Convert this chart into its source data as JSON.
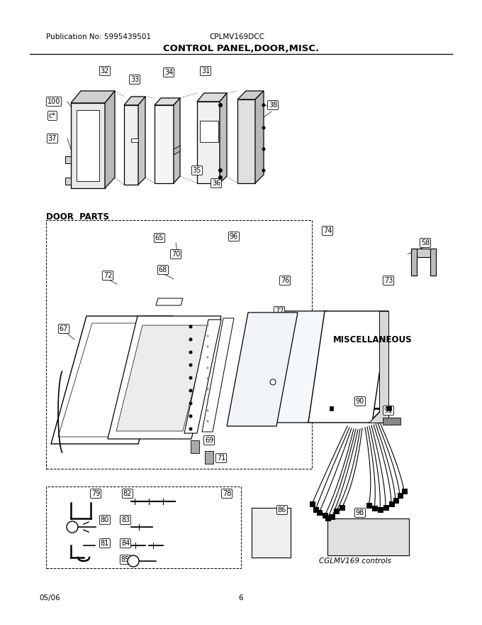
{
  "title": "CONTROL PANEL,DOOR,MISC.",
  "pub_no": "Publication No: 5995439501",
  "model": "CPLMV169DCC",
  "date": "05/06",
  "page": "6",
  "section_door": "DOOR  PARTS",
  "section_misc": "MISCELLANEOUS",
  "section_cglmv": "CGLMV169 controls",
  "bg_color": "#ffffff",
  "figsize": [
    6.8,
    8.8
  ],
  "dpi": 100
}
